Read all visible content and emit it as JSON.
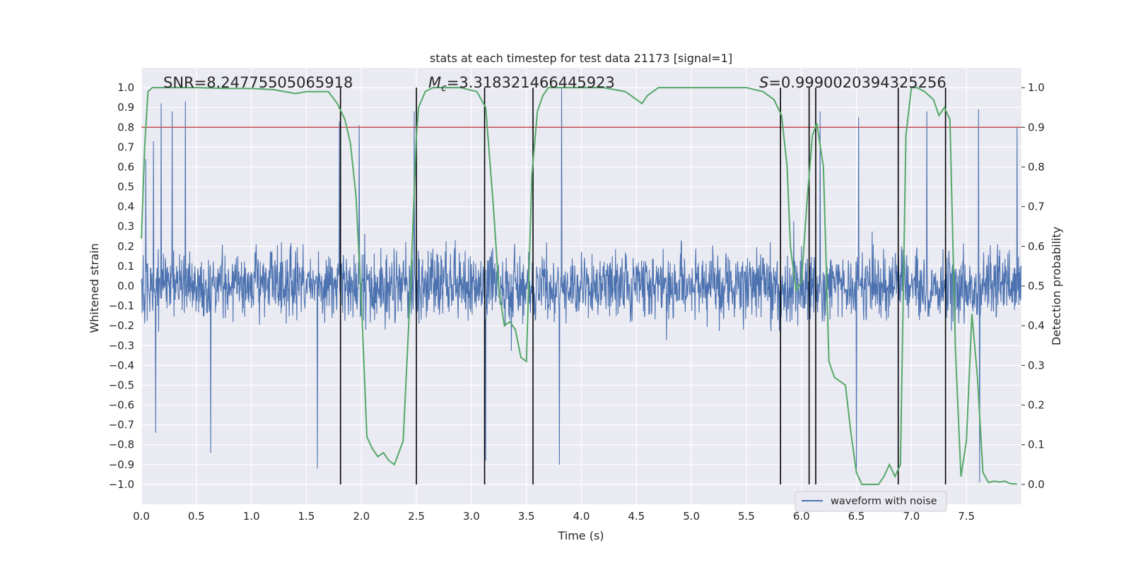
{
  "chart_data": {
    "type": "line",
    "title": "stats at each timestep for test data 21173 [signal=1]",
    "xlabel": "Time (s)",
    "ylabel": "Whitened strain",
    "ylabel_right": "Detection probability",
    "xlim": [
      0.0,
      8.0
    ],
    "ylim": [
      -1.1,
      1.1
    ],
    "ylim_right": [
      -0.05,
      1.05
    ],
    "x_ticks": [
      "0.0",
      "0.5",
      "1.0",
      "1.5",
      "2.0",
      "2.5",
      "3.0",
      "3.5",
      "4.0",
      "4.5",
      "5.0",
      "5.5",
      "6.0",
      "6.5",
      "7.0",
      "7.5"
    ],
    "y_ticks_left": [
      "1.0",
      "0.9",
      "0.8",
      "0.7",
      "0.6",
      "0.5",
      "0.4",
      "0.3",
      "0.2",
      "0.1",
      "0.0",
      "−0.1",
      "−0.2",
      "−0.3",
      "−0.4",
      "−0.5",
      "−0.6",
      "−0.7",
      "−0.8",
      "−0.9",
      "−1.0"
    ],
    "y_ticks_right": [
      "1.0",
      "0.9",
      "0.8",
      "0.7",
      "0.6",
      "0.5",
      "0.4",
      "0.3",
      "0.2",
      "0.1",
      "0.0"
    ],
    "threshold": {
      "value": 0.9,
      "axis": "right",
      "color": "#c44e52"
    },
    "waveform": {
      "name": "waveform with noise",
      "color": "#4c72b0",
      "note": "dense noise, typical amplitude ±0.35, peaks to about ±0.9",
      "peaks": [
        {
          "x": 0.04,
          "y": 0.64
        },
        {
          "x": 0.11,
          "y": 0.73
        },
        {
          "x": 0.18,
          "y": 0.92
        },
        {
          "x": 0.28,
          "y": 0.88
        },
        {
          "x": 0.4,
          "y": 0.93
        },
        {
          "x": 1.8,
          "y": 0.83
        },
        {
          "x": 1.98,
          "y": 0.81
        },
        {
          "x": 2.48,
          "y": 0.88
        },
        {
          "x": 3.82,
          "y": 1.0
        },
        {
          "x": 6.17,
          "y": 0.88
        },
        {
          "x": 6.52,
          "y": 0.85
        },
        {
          "x": 7.14,
          "y": 0.88
        },
        {
          "x": 7.61,
          "y": 0.89
        },
        {
          "x": 7.96,
          "y": 0.8
        }
      ],
      "troughs": [
        {
          "x": 0.13,
          "y": -0.74
        },
        {
          "x": 0.63,
          "y": -0.84
        },
        {
          "x": 1.6,
          "y": -0.92
        },
        {
          "x": 3.13,
          "y": -0.88
        },
        {
          "x": 3.8,
          "y": -0.9
        },
        {
          "x": 6.5,
          "y": -0.92
        },
        {
          "x": 7.62,
          "y": -0.99
        }
      ]
    },
    "probability": {
      "color": "#55a868",
      "x": [
        0.0,
        0.03,
        0.06,
        0.1,
        0.2,
        0.3,
        0.5,
        0.8,
        1.0,
        1.2,
        1.4,
        1.5,
        1.6,
        1.7,
        1.78,
        1.85,
        1.9,
        1.95,
        2.0,
        2.05,
        2.1,
        2.15,
        2.2,
        2.25,
        2.3,
        2.38,
        2.45,
        2.5,
        2.52,
        2.58,
        2.65,
        2.75,
        2.9,
        3.05,
        3.13,
        3.2,
        3.25,
        3.3,
        3.35,
        3.4,
        3.45,
        3.5,
        3.55,
        3.6,
        3.65,
        3.7,
        3.8,
        3.9,
        4.0,
        4.2,
        4.4,
        4.5,
        4.55,
        4.6,
        4.7,
        4.8,
        5.0,
        5.3,
        5.5,
        5.65,
        5.75,
        5.82,
        5.87,
        5.9,
        5.95,
        6.0,
        6.05,
        6.1,
        6.14,
        6.2,
        6.25,
        6.3,
        6.35,
        6.4,
        6.45,
        6.5,
        6.55,
        6.6,
        6.7,
        6.75,
        6.8,
        6.85,
        6.9,
        6.95,
        7.0,
        7.05,
        7.12,
        7.2,
        7.25,
        7.3,
        7.35,
        7.4,
        7.45,
        7.5,
        7.55,
        7.6,
        7.65,
        7.7,
        7.75,
        7.8,
        7.85,
        7.9,
        7.96
      ],
      "y": [
        0.62,
        0.85,
        0.99,
        1.0,
        1.0,
        1.0,
        1.0,
        0.998,
        0.998,
        0.995,
        0.985,
        0.99,
        0.99,
        0.99,
        0.96,
        0.92,
        0.86,
        0.73,
        0.46,
        0.12,
        0.09,
        0.07,
        0.08,
        0.06,
        0.05,
        0.11,
        0.52,
        0.88,
        0.95,
        0.99,
        1.0,
        1.0,
        1.0,
        0.99,
        0.95,
        0.7,
        0.49,
        0.4,
        0.41,
        0.39,
        0.32,
        0.31,
        0.78,
        0.94,
        0.98,
        1.0,
        1.0,
        1.0,
        1.0,
        1.0,
        0.99,
        0.97,
        0.96,
        0.98,
        1.0,
        1.0,
        1.0,
        1.0,
        1.0,
        0.99,
        0.97,
        0.93,
        0.8,
        0.6,
        0.49,
        0.51,
        0.71,
        0.88,
        0.91,
        0.8,
        0.31,
        0.27,
        0.26,
        0.25,
        0.13,
        0.03,
        0.0,
        0.0,
        0.0,
        0.02,
        0.05,
        0.02,
        0.05,
        0.88,
        1.0,
        1.0,
        0.99,
        0.97,
        0.93,
        0.95,
        0.92,
        0.34,
        0.02,
        0.11,
        0.43,
        0.27,
        0.03,
        0.005,
        0.008,
        0.006,
        0.008,
        0.002,
        0.001
      ]
    },
    "vertical_lines": [
      1.81,
      2.5,
      3.12,
      3.56,
      5.81,
      6.07,
      6.13,
      6.88,
      7.31
    ],
    "annotations": {
      "snr": "SNR=8.24775505065918",
      "mc_symbol": "M",
      "mc_sub": "c",
      "mc_value": "=3.318321466445923",
      "s_symbol": "S",
      "s_value": "=0.9990020394325256"
    },
    "legend": {
      "entries": [
        "waveform with noise"
      ],
      "position": "lower-right"
    },
    "grid": true
  }
}
